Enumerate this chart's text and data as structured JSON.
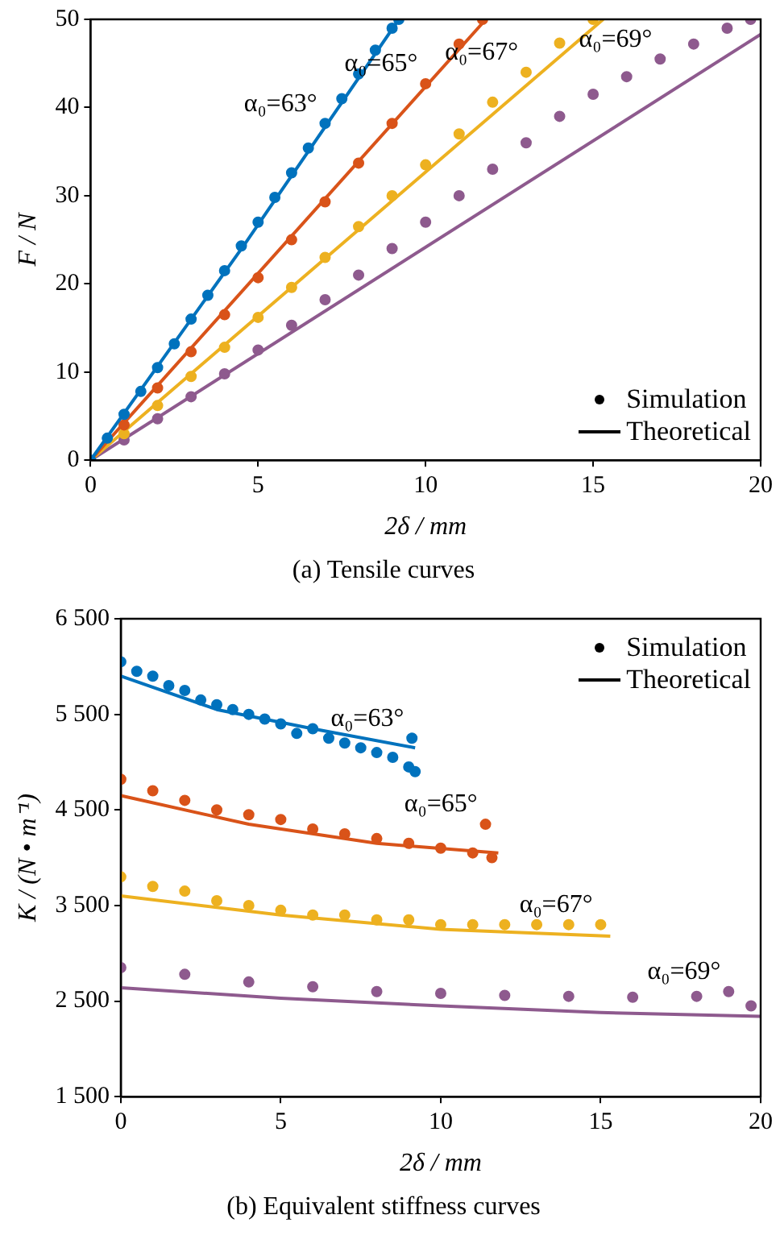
{
  "chart_data": [
    {
      "type": "scatter",
      "title": "(a) Tensile curves",
      "xlabel": "2δ / mm",
      "ylabel": "F / N",
      "xlim": [
        0,
        20
      ],
      "xticks": [
        0,
        5,
        10,
        15,
        20
      ],
      "ylim": [
        0,
        50
      ],
      "yticks": [
        0,
        10,
        20,
        30,
        40,
        50
      ],
      "grid": false,
      "series": [
        {
          "type": "scatter",
          "marker": "circle",
          "color": "#0072bd",
          "x": [
            0,
            0.5,
            1,
            1.5,
            2,
            2.5,
            3,
            3.5,
            4,
            4.5,
            5,
            5.5,
            6,
            6.5,
            7,
            7.5,
            8,
            8.5,
            9,
            9.2
          ],
          "values": [
            0,
            2.5,
            5.2,
            7.8,
            10.5,
            13.2,
            16,
            18.7,
            21.5,
            24.3,
            27,
            29.8,
            32.6,
            35.4,
            38.2,
            41,
            43.8,
            46.5,
            49,
            50
          ]
        },
        {
          "type": "line",
          "marker": "none",
          "line_style": "solid",
          "color": "#0072bd",
          "x": [
            0,
            4.6,
            9.2
          ],
          "values": [
            0,
            24.5,
            50
          ]
        },
        {
          "type": "scatter",
          "marker": "circle",
          "color": "#d95319",
          "x": [
            1,
            2,
            3,
            4,
            5,
            6,
            7,
            8,
            9,
            10,
            11,
            11.7
          ],
          "values": [
            4,
            8.2,
            12.3,
            16.5,
            20.7,
            25,
            29.3,
            33.7,
            38.2,
            42.7,
            47.2,
            50
          ]
        },
        {
          "type": "line",
          "marker": "none",
          "line_style": "solid",
          "color": "#d95319",
          "x": [
            0,
            11.8
          ],
          "values": [
            0,
            50
          ]
        },
        {
          "type": "scatter",
          "marker": "circle",
          "color": "#edb120",
          "x": [
            1,
            2,
            3,
            4,
            5,
            6,
            7,
            8,
            9,
            10,
            11,
            12,
            13,
            14,
            15
          ],
          "values": [
            3,
            6.2,
            9.5,
            12.8,
            16.2,
            19.6,
            23,
            26.5,
            30,
            33.5,
            37,
            40.6,
            44,
            47.3,
            50
          ]
        },
        {
          "type": "line",
          "marker": "none",
          "line_style": "solid",
          "color": "#edb120",
          "x": [
            0,
            15.3
          ],
          "values": [
            0,
            50
          ]
        },
        {
          "type": "scatter",
          "marker": "circle",
          "color": "#8e5a8e",
          "x": [
            1,
            2,
            3,
            4,
            5,
            6,
            7,
            8,
            9,
            10,
            11,
            12,
            13,
            14,
            15,
            16,
            17,
            18,
            19,
            19.7
          ],
          "values": [
            2.3,
            4.7,
            7.2,
            9.8,
            12.5,
            15.3,
            18.2,
            21,
            24,
            27,
            30,
            33,
            36,
            39,
            41.5,
            43.5,
            45.5,
            47.2,
            49,
            50
          ]
        },
        {
          "type": "line",
          "marker": "none",
          "line_style": "solid",
          "color": "#8e5a8e",
          "x": [
            0,
            20
          ],
          "values": [
            0,
            48.3
          ]
        }
      ],
      "annotations": [
        {
          "text": "α₀=63°",
          "x": 7,
          "y": 38.2
        },
        {
          "text": "α₀=65°",
          "x": 10,
          "y": 42.7
        },
        {
          "text": "α₀=67°",
          "x": 13,
          "y": 44
        },
        {
          "text": "α₀=69°",
          "x": 17,
          "y": 45.5
        },
        "Simulation",
        "Theoretical"
      ]
    },
    {
      "type": "scatter",
      "title": "(b) Equivalent stiffness curves",
      "xlabel": "2δ / mm",
      "ylabel": "K / (N • m⁻¹)",
      "xlim": [
        0,
        20
      ],
      "xticks": [
        0,
        5,
        10,
        15,
        20
      ],
      "ylim": [
        1500,
        6500
      ],
      "yticks": [
        {
          "value": 1500,
          "label": "1 500"
        },
        {
          "value": 2500,
          "label": "2 500"
        },
        {
          "value": 3500,
          "label": "3 500"
        },
        {
          "value": 4500,
          "label": "4 500"
        },
        {
          "value": 5500,
          "label": "5 500"
        },
        {
          "value": 6500,
          "label": "6 500"
        }
      ],
      "grid": false,
      "series": [
        {
          "type": "scatter",
          "marker": "circle",
          "color": "#0072bd",
          "x": [
            0,
            0.5,
            1,
            1.5,
            2,
            2.5,
            3,
            3.5,
            4,
            4.5,
            5,
            5.5,
            6,
            6.5,
            7,
            7.5,
            8,
            8.5,
            9,
            9.1,
            9.2
          ],
          "values": [
            6050,
            5950,
            5900,
            5800,
            5750,
            5650,
            5600,
            5550,
            5500,
            5450,
            5400,
            5300,
            5350,
            5250,
            5200,
            5150,
            5100,
            5050,
            4950,
            5250,
            4900
          ]
        },
        {
          "type": "line",
          "marker": "none",
          "line_style": "solid",
          "color": "#0072bd",
          "x": [
            0,
            3,
            6,
            9.2
          ],
          "values": [
            5900,
            5550,
            5350,
            5150
          ]
        },
        {
          "type": "scatter",
          "marker": "circle",
          "color": "#d95319",
          "x": [
            0,
            1,
            2,
            3,
            4,
            5,
            6,
            7,
            8,
            9,
            10,
            11,
            11.4,
            11.6
          ],
          "values": [
            4820,
            4700,
            4600,
            4500,
            4450,
            4400,
            4300,
            4250,
            4200,
            4150,
            4100,
            4050,
            4350,
            4000
          ]
        },
        {
          "type": "line",
          "marker": "none",
          "line_style": "solid",
          "color": "#d95319",
          "x": [
            0,
            4,
            8,
            11.8
          ],
          "values": [
            4650,
            4350,
            4150,
            4050
          ]
        },
        {
          "type": "scatter",
          "marker": "circle",
          "color": "#edb120",
          "x": [
            0,
            1,
            2,
            3,
            4,
            5,
            6,
            7,
            8,
            9,
            10,
            11,
            12,
            13,
            14,
            15
          ],
          "values": [
            3800,
            3700,
            3650,
            3550,
            3500,
            3450,
            3400,
            3400,
            3350,
            3350,
            3300,
            3300,
            3300,
            3300,
            3300,
            3300
          ]
        },
        {
          "type": "line",
          "marker": "none",
          "line_style": "solid",
          "color": "#edb120",
          "x": [
            0,
            5,
            10,
            15.3
          ],
          "values": [
            3600,
            3400,
            3250,
            3180
          ]
        },
        {
          "type": "scatter",
          "marker": "circle",
          "color": "#8e5a8e",
          "x": [
            0,
            2,
            4,
            6,
            8,
            10,
            12,
            14,
            16,
            18,
            19,
            19.7
          ],
          "values": [
            2850,
            2780,
            2700,
            2650,
            2600,
            2580,
            2560,
            2550,
            2540,
            2550,
            2600,
            2450
          ]
        },
        {
          "type": "line",
          "marker": "none",
          "line_style": "solid",
          "color": "#8e5a8e",
          "x": [
            0,
            5,
            10,
            15,
            20
          ],
          "values": [
            2640,
            2530,
            2450,
            2380,
            2340
          ]
        }
      ],
      "annotations": [
        {
          "text": "α₀=63°",
          "x": 9.1,
          "y": 5250
        },
        {
          "text": "α₀=65°",
          "x": 11.4,
          "y": 4350
        },
        {
          "text": "α₀=67°",
          "x": 15,
          "y": 3300
        },
        {
          "text": "α₀=69°",
          "x": 19,
          "y": 2600
        },
        "Simulation",
        "Theoretical"
      ]
    }
  ]
}
